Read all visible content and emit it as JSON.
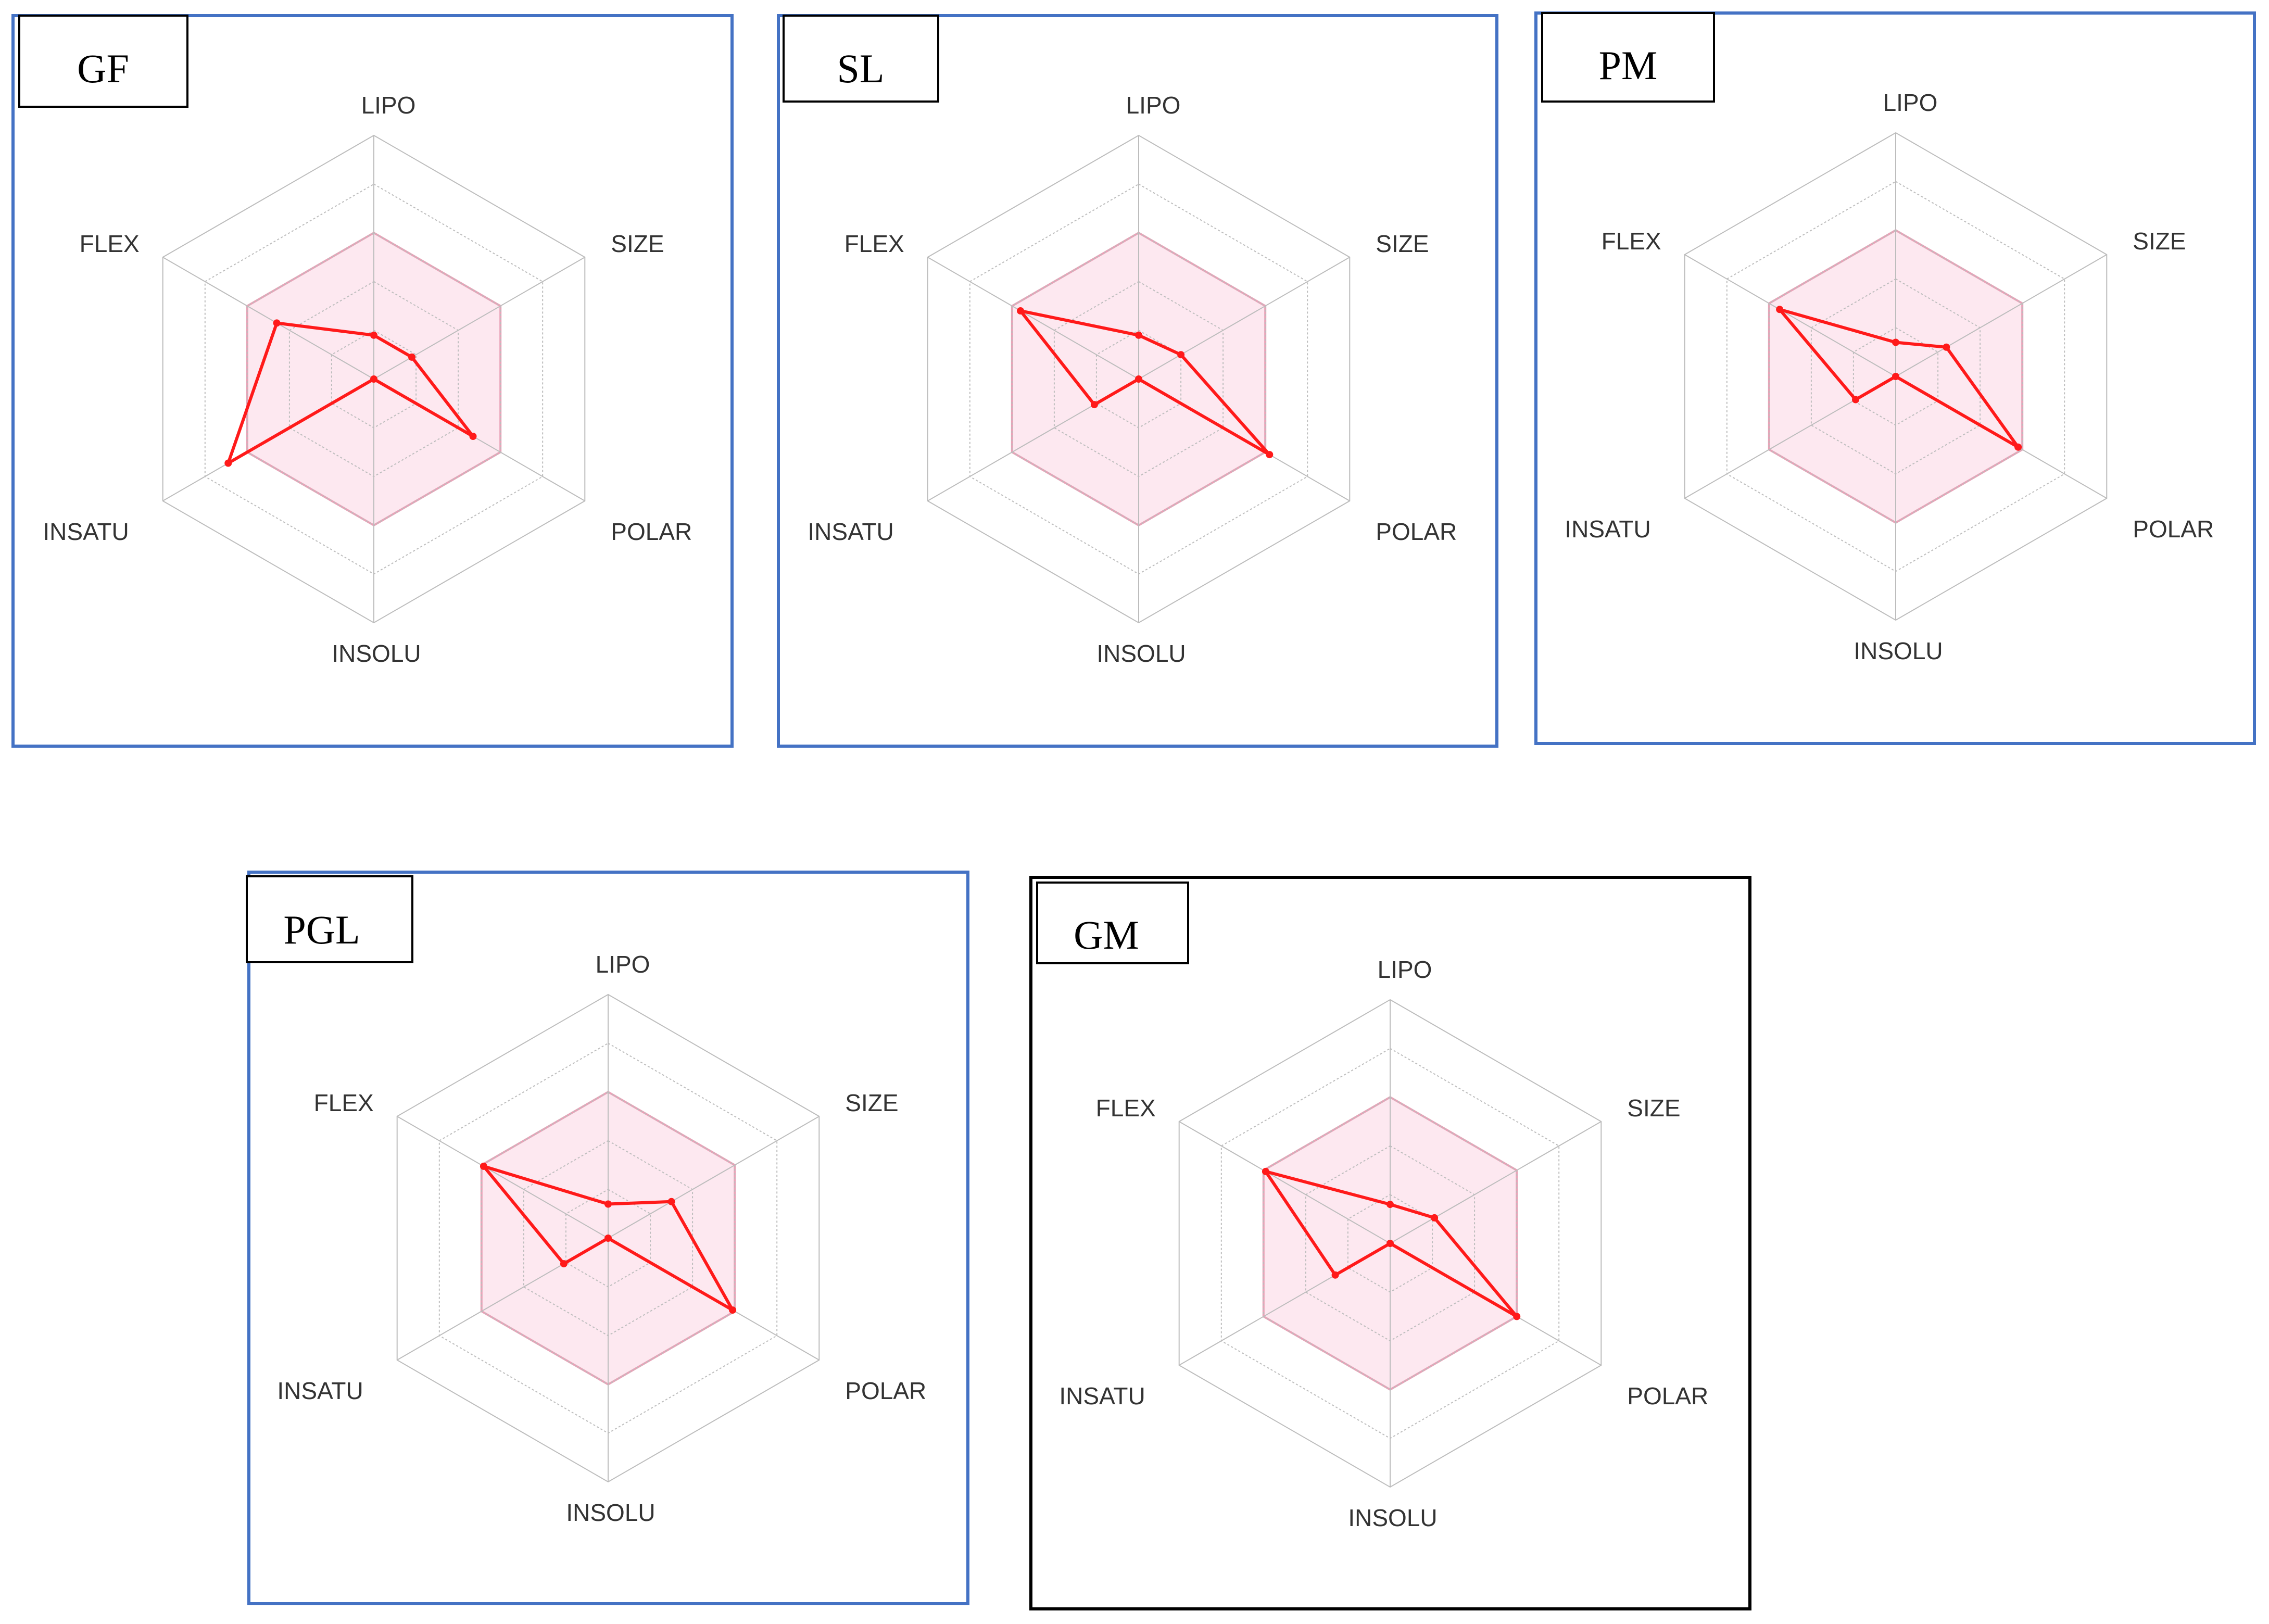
{
  "figure": {
    "axes": [
      "LIPO",
      "SIZE",
      "POLAR",
      "INSOLU",
      "INSATU",
      "FLEX"
    ],
    "colors": {
      "series": "#ff1a1a",
      "optimal_fill": "#fde8f0",
      "optimal_stroke": "#e9a3b8",
      "grid": "#bdbdbd",
      "frame_blue": "#4472c4",
      "frame_black": "#000000"
    }
  },
  "chart_data": [
    {
      "type": "radar",
      "title": "GF",
      "axes": [
        "LIPO",
        "SIZE",
        "POLAR",
        "INSOLU",
        "INSATU",
        "FLEX"
      ],
      "range": [
        0,
        1
      ],
      "optimal_range": [
        0.0,
        0.6
      ],
      "values": [
        0.18,
        0.18,
        0.47,
        0.0,
        0.69,
        0.46
      ]
    },
    {
      "type": "radar",
      "title": "SL",
      "axes": [
        "LIPO",
        "SIZE",
        "POLAR",
        "INSOLU",
        "INSATU",
        "FLEX"
      ],
      "range": [
        0,
        1
      ],
      "optimal_range": [
        0.0,
        0.6
      ],
      "values": [
        0.18,
        0.2,
        0.62,
        0.0,
        0.21,
        0.56
      ]
    },
    {
      "type": "radar",
      "title": "PM",
      "axes": [
        "LIPO",
        "SIZE",
        "POLAR",
        "INSOLU",
        "INSATU",
        "FLEX"
      ],
      "range": [
        0,
        1
      ],
      "optimal_range": [
        0.0,
        0.6
      ],
      "values": [
        0.14,
        0.24,
        0.58,
        0.0,
        0.19,
        0.55
      ]
    },
    {
      "type": "radar",
      "title": "PGL",
      "axes": [
        "LIPO",
        "SIZE",
        "POLAR",
        "INSOLU",
        "INSATU",
        "FLEX"
      ],
      "range": [
        0,
        1
      ],
      "optimal_range": [
        0.0,
        0.6
      ],
      "values": [
        0.14,
        0.3,
        0.59,
        0.0,
        0.21,
        0.59
      ]
    },
    {
      "type": "radar",
      "title": "GM",
      "axes": [
        "LIPO",
        "SIZE",
        "POLAR",
        "INSOLU",
        "INSATU",
        "FLEX"
      ],
      "range": [
        0,
        1
      ],
      "optimal_range": [
        0.0,
        0.6
      ],
      "values": [
        0.16,
        0.21,
        0.6,
        0.0,
        0.26,
        0.59
      ]
    }
  ]
}
